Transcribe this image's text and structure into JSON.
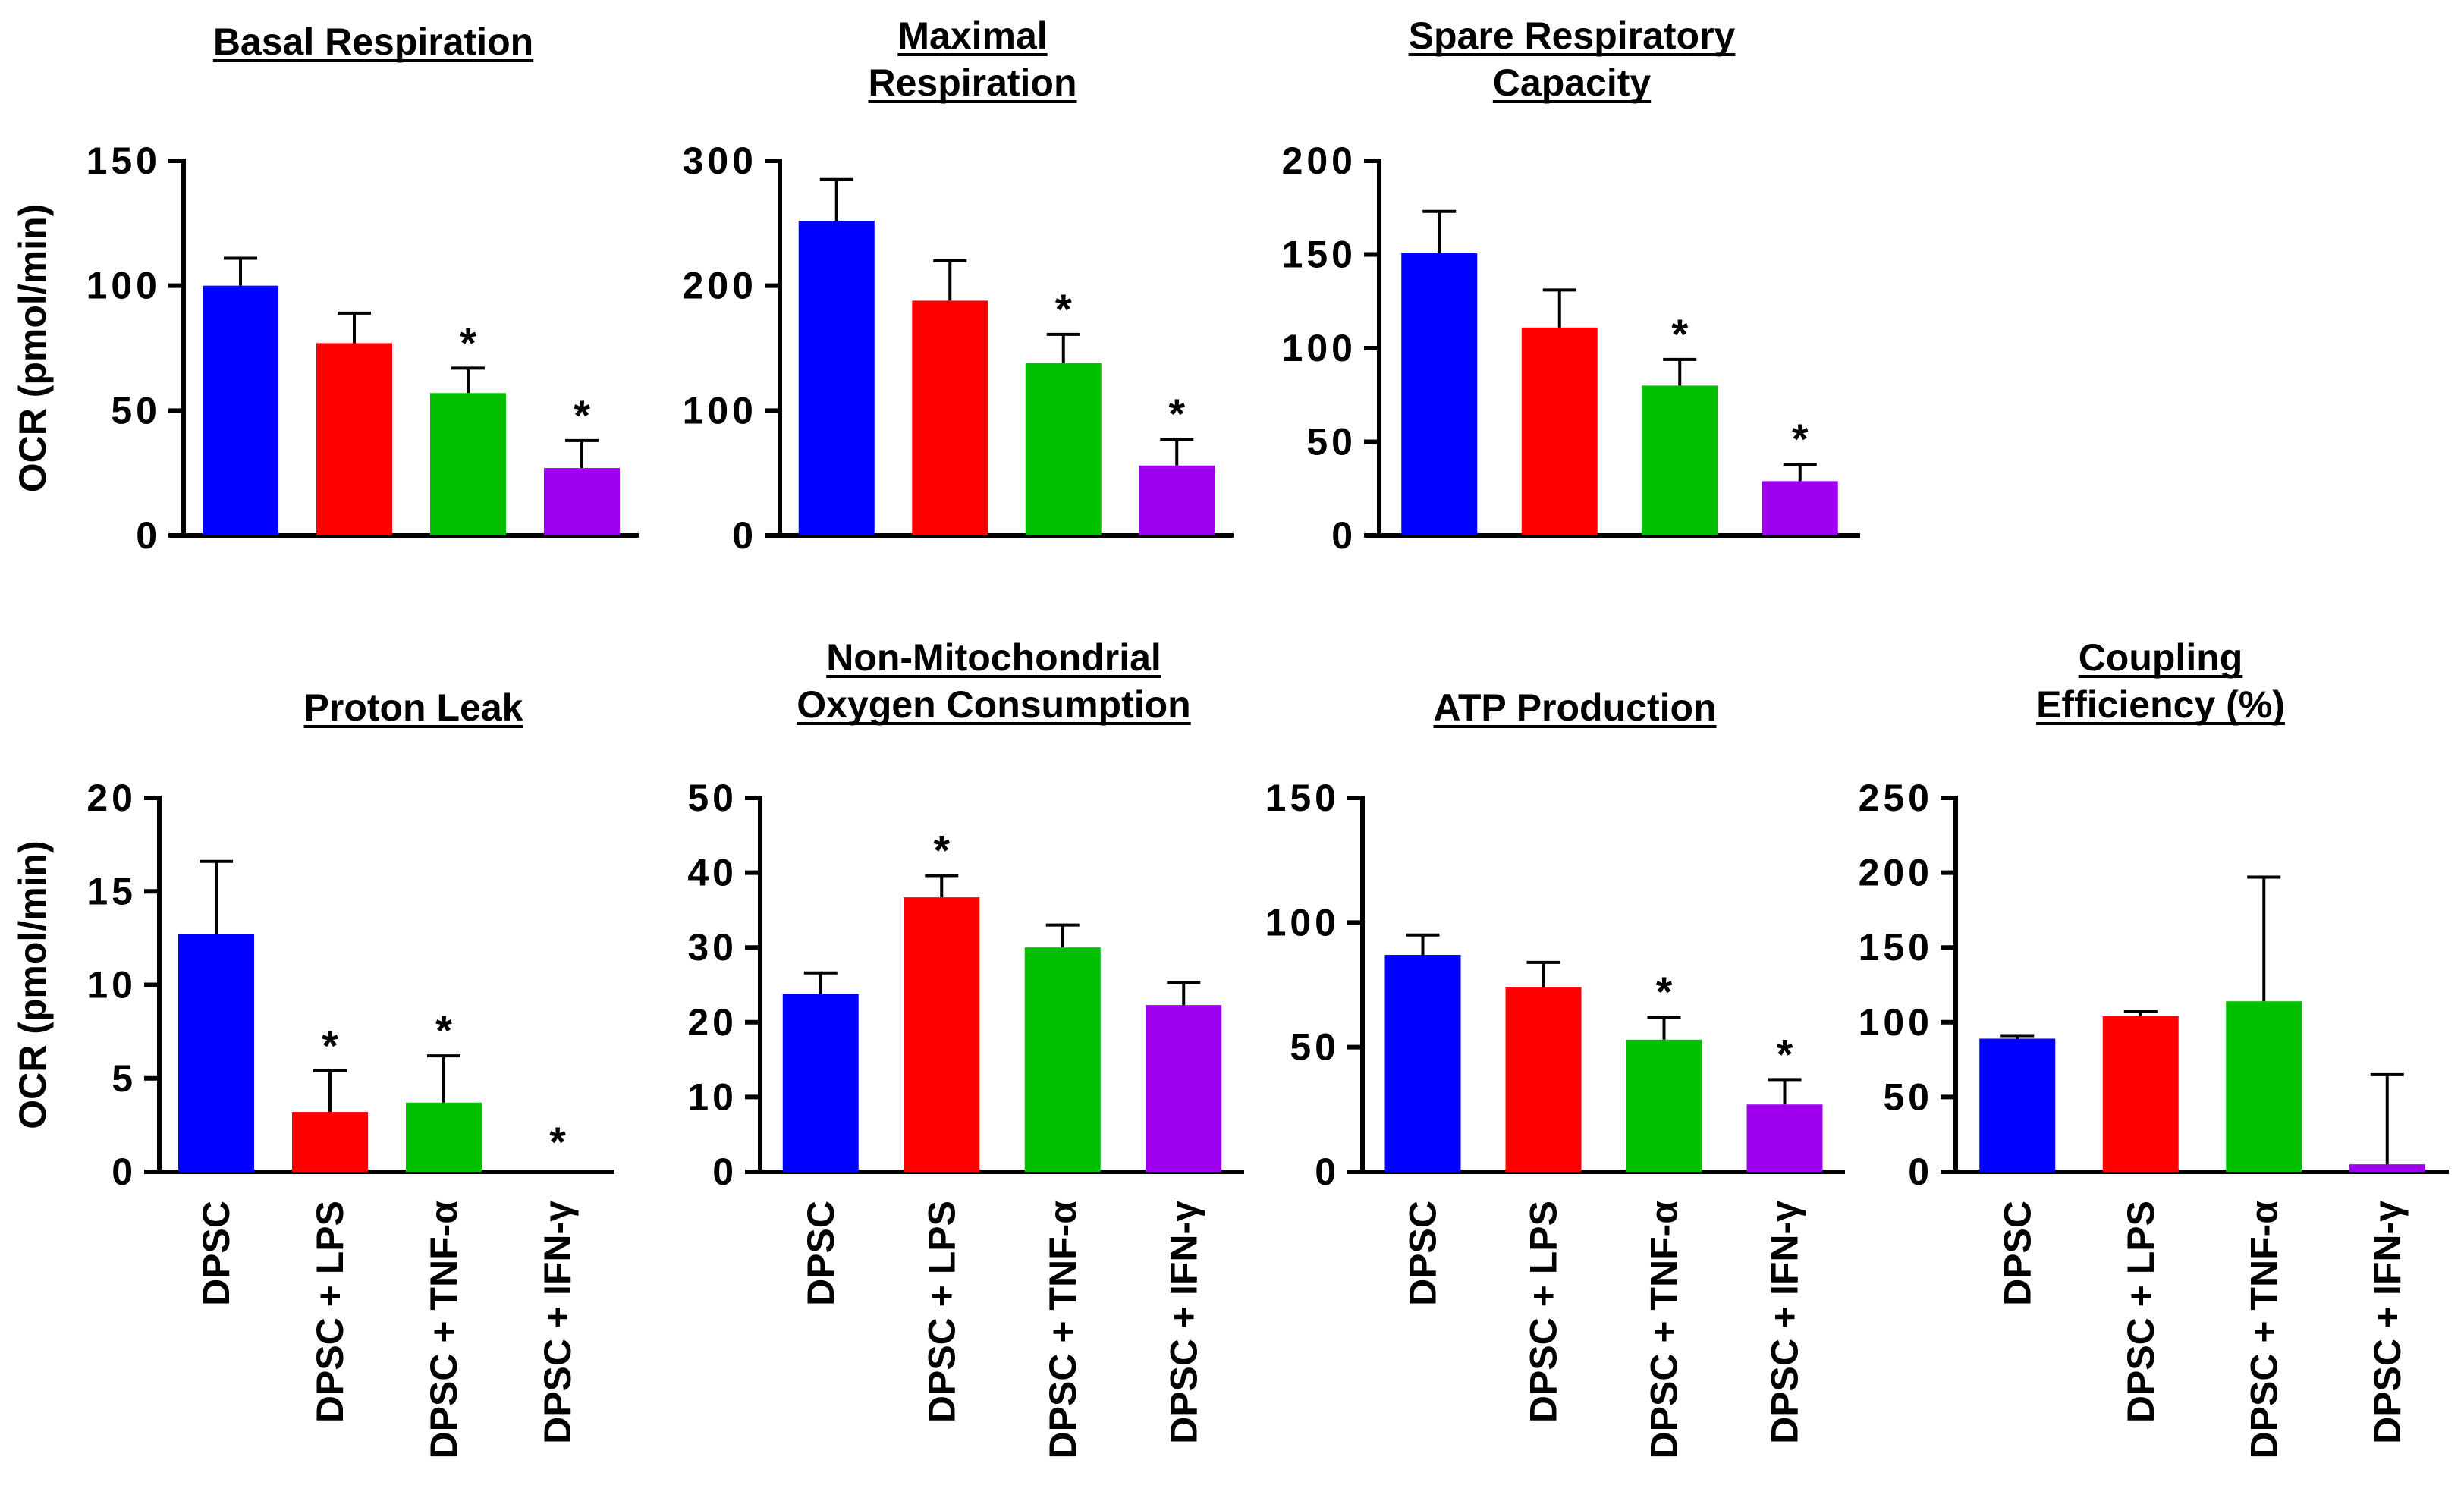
{
  "figure": {
    "ylabel": "OCR (pmol/min)",
    "categories": [
      "DPSC",
      "DPSC + LPS",
      "DPSC + TNF-α",
      "DPSC + IFN-γ"
    ],
    "colors": [
      "#0000FF",
      "#FF0000",
      "#00C000",
      "#A000F0"
    ]
  },
  "chart_data": [
    {
      "type": "bar",
      "title": [
        "Basal Respiration"
      ],
      "ylabel": "OCR (pmol/min)",
      "categories": [
        "DPSC",
        "DPSC + LPS",
        "DPSC + TNF-α",
        "DPSC + IFN-γ"
      ],
      "values": [
        100,
        77,
        57,
        27
      ],
      "errors": [
        11,
        12,
        10,
        11
      ],
      "significant": [
        false,
        false,
        true,
        true
      ],
      "ylim": [
        0,
        150
      ],
      "yticks": [
        "0",
        "50",
        "100",
        "150"
      ]
    },
    {
      "type": "bar",
      "title": [
        "Maximal",
        "Respiration"
      ],
      "ylabel": "",
      "categories": [
        "DPSC",
        "DPSC + LPS",
        "DPSC + TNF-α",
        "DPSC + IFN-γ"
      ],
      "values": [
        252,
        188,
        138,
        56
      ],
      "errors": [
        33,
        32,
        23,
        21
      ],
      "significant": [
        false,
        false,
        true,
        true
      ],
      "ylim": [
        0,
        300
      ],
      "yticks": [
        "0",
        "100",
        "200",
        "300"
      ]
    },
    {
      "type": "bar",
      "title": [
        "Spare Respiratory",
        "Capacity"
      ],
      "ylabel": "",
      "categories": [
        "DPSC",
        "DPSC + LPS",
        "DPSC + TNF-α",
        "DPSC + IFN-γ"
      ],
      "values": [
        151,
        111,
        80,
        29
      ],
      "errors": [
        22,
        20,
        14,
        9
      ],
      "significant": [
        false,
        false,
        true,
        true
      ],
      "ylim": [
        0,
        200
      ],
      "yticks": [
        "0",
        "50",
        "100",
        "150",
        "200"
      ]
    },
    {
      "type": "bar",
      "title": [
        "Proton Leak"
      ],
      "ylabel": "OCR (pmol/min)",
      "categories": [
        "DPSC",
        "DPSC + LPS",
        "DPSC + TNF-α",
        "DPSC + IFN-γ"
      ],
      "values": [
        12.7,
        3.2,
        3.7,
        0
      ],
      "errors": [
        3.9,
        2.2,
        2.5,
        0
      ],
      "significant": [
        false,
        true,
        true,
        true
      ],
      "ylim": [
        0,
        20
      ],
      "yticks": [
        "0",
        "5",
        "10",
        "15",
        "20"
      ]
    },
    {
      "type": "bar",
      "title": [
        "Non-Mitochondrial",
        "Oxygen Consumption"
      ],
      "ylabel": "",
      "categories": [
        "DPSC",
        "DPSC + LPS",
        "DPSC + TNF-α",
        "DPSC + IFN-γ"
      ],
      "values": [
        23.8,
        36.7,
        30,
        22.3
      ],
      "errors": [
        2.8,
        2.9,
        3,
        3
      ],
      "significant": [
        false,
        true,
        false,
        false
      ],
      "ylim": [
        0,
        50
      ],
      "yticks": [
        "0",
        "10",
        "20",
        "30",
        "40",
        "50"
      ]
    },
    {
      "type": "bar",
      "title": [
        "ATP Production"
      ],
      "ylabel": "",
      "categories": [
        "DPSC",
        "DPSC + LPS",
        "DPSC + TNF-α",
        "DPSC + IFN-γ"
      ],
      "values": [
        87,
        74,
        53,
        27
      ],
      "errors": [
        8,
        10,
        9,
        10
      ],
      "significant": [
        false,
        false,
        true,
        true
      ],
      "ylim": [
        0,
        150
      ],
      "yticks": [
        "0",
        "50",
        "100",
        "150"
      ]
    },
    {
      "type": "bar",
      "title": [
        "Coupling",
        "Efficiency (%)"
      ],
      "ylabel": "",
      "categories": [
        "DPSC",
        "DPSC + LPS",
        "DPSC + TNF-α",
        "DPSC + IFN-γ"
      ],
      "values": [
        89,
        104,
        114,
        5
      ],
      "errors": [
        2,
        3,
        83,
        60
      ],
      "significant": [
        false,
        false,
        false,
        false
      ],
      "ylim": [
        0,
        250
      ],
      "yticks": [
        "0",
        "50",
        "100",
        "150",
        "200",
        "250"
      ]
    }
  ]
}
